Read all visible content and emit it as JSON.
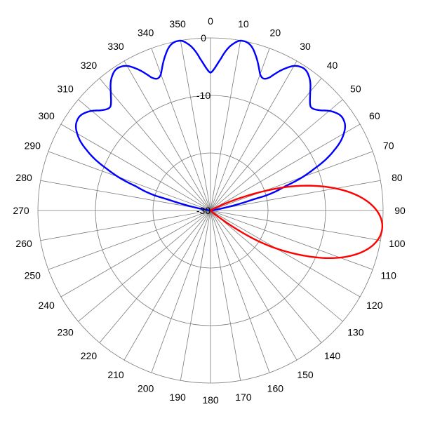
{
  "chart_data": {
    "type": "polar-line",
    "title": "",
    "angle_unit": "degrees",
    "angle_direction": "clockwise",
    "zero_position": "top",
    "angle_ticks": [
      0,
      10,
      20,
      30,
      40,
      50,
      60,
      70,
      80,
      90,
      100,
      110,
      120,
      130,
      140,
      150,
      160,
      170,
      180,
      190,
      200,
      210,
      220,
      230,
      240,
      250,
      260,
      270,
      280,
      290,
      300,
      310,
      320,
      330,
      340,
      350
    ],
    "angle_tick_labels": [
      "0",
      "10",
      "20",
      "30",
      "40",
      "50",
      "60",
      "70",
      "80",
      "90",
      "100",
      "110",
      "120",
      "130",
      "140",
      "150",
      "160",
      "170",
      "180",
      "190",
      "200",
      "210",
      "220",
      "230",
      "240",
      "250",
      "260",
      "270",
      "280",
      "290",
      "300",
      "310",
      "320",
      "330",
      "340",
      "350"
    ],
    "radial_range": [
      -30,
      0
    ],
    "radial_ticks": [
      0,
      -10,
      -20,
      -30
    ],
    "radial_tick_labels": [
      "0",
      "-10",
      "-30"
    ],
    "grid": true,
    "legend": "none",
    "series": [
      {
        "color": "#0000ff",
        "style": "multi-beam",
        "main_lobes": [
          {
            "angle": -55,
            "peak": -2.0,
            "width": 11
          },
          {
            "angle": -33,
            "peak": -0.5,
            "width": 10
          },
          {
            "angle": -11,
            "peak": 0.0,
            "width": 9
          },
          {
            "angle": 11,
            "peak": 0.0,
            "width": 9
          },
          {
            "angle": 33,
            "peak": -0.5,
            "width": 10
          },
          {
            "angle": 55,
            "peak": -2.0,
            "width": 11
          }
        ],
        "sidelobe_level": -19.0,
        "sidelobe_period": 4,
        "sidelobe_extent": 75,
        "back_level": -30.0
      },
      {
        "color": "#ff0000",
        "style": "single-beam",
        "main_lobes": [
          {
            "angle": 96,
            "peak": 0.0,
            "width": 14
          }
        ],
        "side_lobes": [
          {
            "angle": 120,
            "peak": -24.5,
            "width": 5
          },
          {
            "angle": 75,
            "peak": -26.0,
            "width": 4
          }
        ],
        "back_level": -30.0
      }
    ]
  }
}
